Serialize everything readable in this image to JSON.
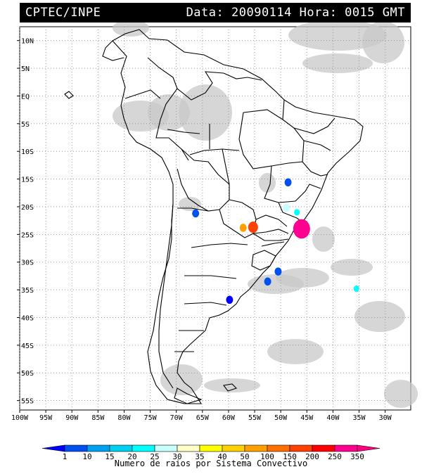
{
  "header": {
    "agency": "CPTEC/INPE",
    "date_label": "Data:",
    "date_value": "20090114",
    "time_label": "Hora:",
    "time_value": "0015",
    "time_zone": "GMT"
  },
  "map": {
    "lat_labels": [
      "10N",
      "5N",
      "EQ",
      "5S",
      "10S",
      "15S",
      "20S",
      "25S",
      "30S",
      "35S",
      "40S",
      "45S",
      "50S",
      "55S"
    ],
    "lon_labels": [
      "100W",
      "95W",
      "90W",
      "85W",
      "80W",
      "75W",
      "70W",
      "65W",
      "60W",
      "55W",
      "50W",
      "45W",
      "40W",
      "35W",
      "30W"
    ],
    "lat_values": [
      10,
      5,
      0,
      -5,
      -10,
      -15,
      -20,
      -25,
      -30,
      -35,
      -40,
      -45,
      -50,
      -55
    ],
    "lon_values": [
      -100,
      -95,
      -90,
      -85,
      -80,
      -75,
      -70,
      -65,
      -60,
      -55,
      -50,
      -45,
      -40,
      -35,
      -30
    ],
    "grid": "dotted",
    "cloud_color": "#c8c8c8",
    "border_color": "#000000",
    "lightning_systems": [
      {
        "lon": -46.0,
        "lat": -24.0,
        "class": "350"
      },
      {
        "lon": -55.3,
        "lat": -23.7,
        "class": "200"
      },
      {
        "lon": -57.2,
        "lat": -23.8,
        "class": "100"
      },
      {
        "lon": -50.5,
        "lat": -31.7,
        "class": "10"
      },
      {
        "lon": -52.5,
        "lat": -33.5,
        "class": "10"
      },
      {
        "lon": -59.8,
        "lat": -36.8,
        "class": "1"
      },
      {
        "lon": -35.5,
        "lat": -34.8,
        "class": "25"
      },
      {
        "lon": -46.9,
        "lat": -21.0,
        "class": "25"
      },
      {
        "lon": -48.9,
        "lat": -20.2,
        "class": "30"
      },
      {
        "lon": -48.6,
        "lat": -15.6,
        "class": "10"
      },
      {
        "lon": -66.3,
        "lat": -21.2,
        "class": "10"
      }
    ]
  },
  "legend": {
    "title": "Numero de raios por Sistema Convectivo",
    "values": [
      "1",
      "10",
      "15",
      "20",
      "25",
      "30",
      "35",
      "40",
      "50",
      "100",
      "150",
      "200",
      "250",
      "350"
    ],
    "colors": [
      "#0000ff",
      "#0050f0",
      "#00a0f0",
      "#00d0f0",
      "#00ffff",
      "#c8ffff",
      "#ffffc8",
      "#ffff00",
      "#ffd000",
      "#ffa000",
      "#ff7000",
      "#ff4000",
      "#ff0000",
      "#ff0090",
      "#ff0080"
    ]
  }
}
